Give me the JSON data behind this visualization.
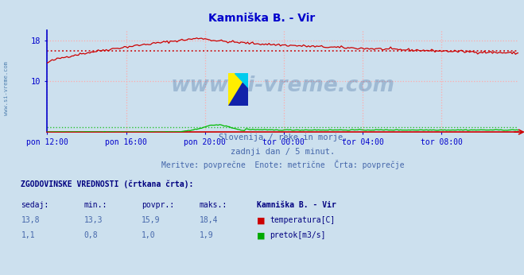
{
  "title": "Kamniška B. - Vir",
  "title_color": "#0000cc",
  "bg_color": "#ccddeе",
  "plot_bg_color": "#ddeeff",
  "grid_color": "#ffaaaa",
  "axis_color": "#0000cc",
  "watermark_text": "www.si-vreme.com",
  "watermark_color": "#1a4a8a",
  "watermark_alpha": 0.25,
  "subtitle1": "Slovenija / reke in morje.",
  "subtitle2": "zadnji dan / 5 minut.",
  "subtitle3": "Meritve: povprečne  Enote: metrične  Črta: povprečje",
  "subtitle_color": "#4466aa",
  "legend_title": "ZGODOVINSKE VREDNOSTI (črtkana črta):",
  "legend_cols": [
    "sedaj:",
    "min.:",
    "povpr.:",
    "maks.:",
    "Kamniška B. - Vir"
  ],
  "legend_row1": [
    "13,8",
    "13,3",
    "15,9",
    "18,4"
  ],
  "legend_row2": [
    "1,1",
    "0,8",
    "1,0",
    "1,9"
  ],
  "legend_label1": "temperatura[C]",
  "legend_label2": "pretok[m3/s]",
  "legend_color1": "#cc0000",
  "legend_color2": "#00aa00",
  "xticklabels": [
    "pon 12:00",
    "pon 16:00",
    "pon 20:00",
    "tor 00:00",
    "tor 04:00",
    "tor 08:00"
  ],
  "ylim": [
    0,
    20
  ],
  "temp_avg": 15.9,
  "flow_avg": 1.0,
  "temp_color": "#cc0000",
  "flow_color": "#00bb00",
  "num_points": 288,
  "sidebar_text": "www.si-vreme.com",
  "sidebar_color": "#4477aa"
}
